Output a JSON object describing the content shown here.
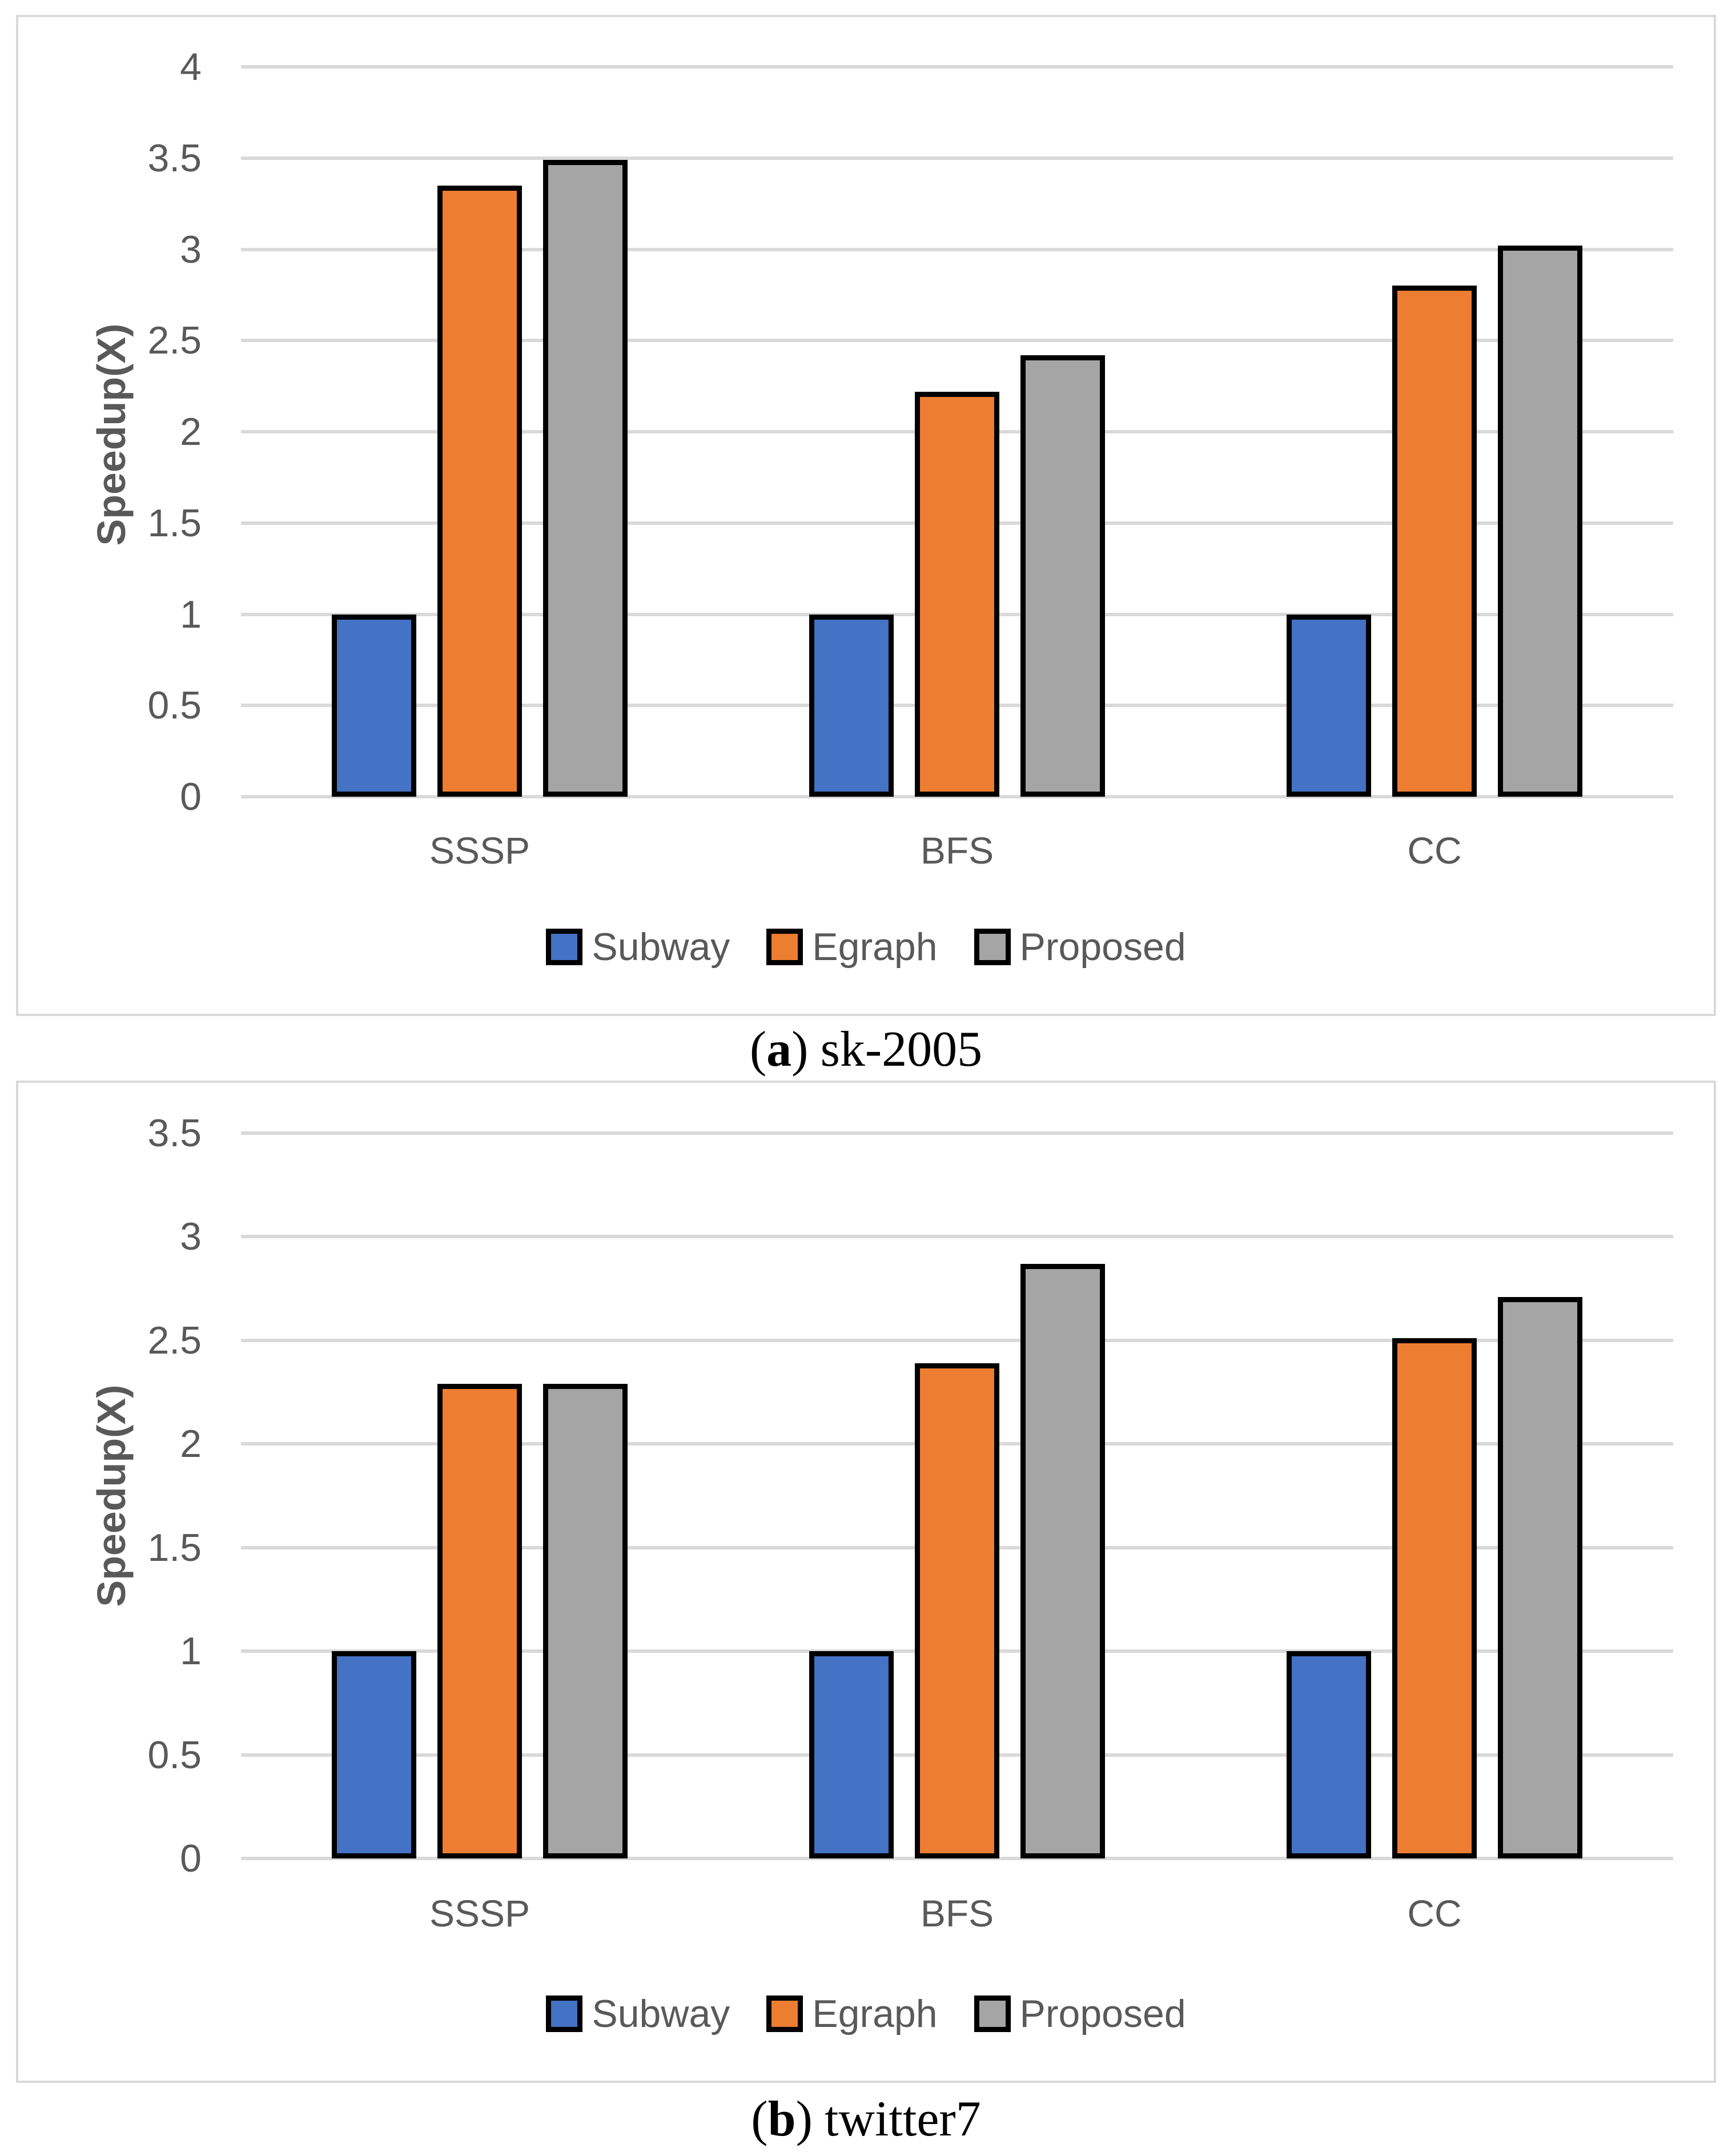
{
  "figure": {
    "background": "#FFFFFF",
    "captions": [
      {
        "open": "(",
        "letter": "a",
        "close": ")",
        "title": "sk-2005"
      },
      {
        "open": "(",
        "letter": "b",
        "close": ")",
        "title": "twitter7"
      }
    ]
  },
  "colors": {
    "subway_blue": "#4472C4",
    "egraph_orange": "#ED7D31",
    "proposed_gray": "#A5A5A5",
    "gridline": "#D9D9D9",
    "axis_text": "#595959",
    "bar_border": "#000000"
  },
  "chart_data": [
    {
      "type": "bar",
      "panel": "a",
      "caption": "(a) sk-2005",
      "ylabel": "Speedup(X)",
      "ylim": [
        0,
        4
      ],
      "ytick_step": 0.5,
      "ytick_labels": [
        "0",
        "0.5",
        "1",
        "1.5",
        "2",
        "2.5",
        "3",
        "3.5",
        "4"
      ],
      "grid": true,
      "legend_position": "bottom",
      "categories": [
        "SSSP",
        "BFS",
        "CC"
      ],
      "series": [
        {
          "name": "Subway",
          "color": "#4472C4",
          "values": [
            1,
            1,
            1
          ]
        },
        {
          "name": "Egraph",
          "color": "#ED7D31",
          "values": [
            3.35,
            2.22,
            2.8
          ]
        },
        {
          "name": "Proposed",
          "color": "#A5A5A5",
          "values": [
            3.49,
            2.42,
            3.02
          ]
        }
      ]
    },
    {
      "type": "bar",
      "panel": "b",
      "caption": "(b) twitter7",
      "ylabel": "Speedup(X)",
      "ylim": [
        0,
        3.5
      ],
      "ytick_step": 0.5,
      "ytick_labels": [
        "0",
        "0.5",
        "1",
        "1.5",
        "2",
        "2.5",
        "3",
        "3.5"
      ],
      "grid": true,
      "legend_position": "bottom",
      "categories": [
        "SSSP",
        "BFS",
        "CC"
      ],
      "series": [
        {
          "name": "Subway",
          "color": "#4472C4",
          "values": [
            1,
            1,
            1
          ]
        },
        {
          "name": "Egraph",
          "color": "#ED7D31",
          "values": [
            2.29,
            2.39,
            2.51
          ]
        },
        {
          "name": "Proposed",
          "color": "#A5A5A5",
          "values": [
            2.29,
            2.87,
            2.71
          ]
        }
      ]
    }
  ]
}
